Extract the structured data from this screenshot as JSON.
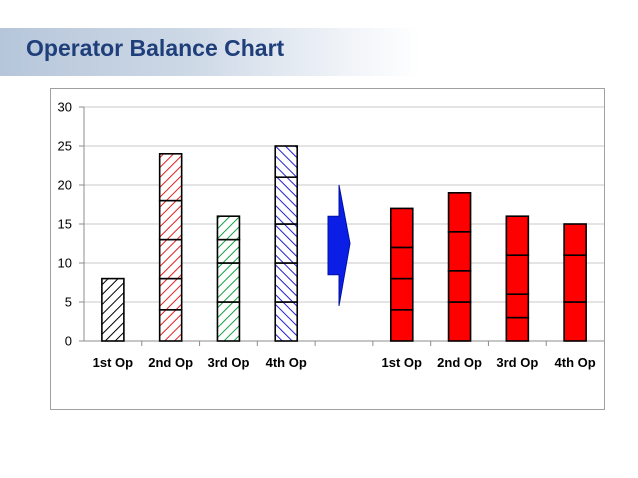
{
  "slide": {
    "title": "Operator Balance Chart"
  },
  "colors": {
    "title": "#1f3f7a",
    "before_ops": [
      "#000000",
      "#e02020",
      "#10a040",
      "#2020d0"
    ],
    "after": "#ff0000",
    "arrow": "#0a1ee6"
  },
  "chart_data": {
    "type": "bar",
    "stacked": true,
    "ylim": [
      0,
      30
    ],
    "yticks": [
      0,
      5,
      10,
      15,
      20,
      25,
      30
    ],
    "grid": true,
    "groups": [
      {
        "name": "",
        "style": "hatched",
        "categories": [
          "1st Op",
          "2nd Op",
          "3rd Op",
          "4th Op"
        ],
        "segments": [
          [
            8
          ],
          [
            4,
            4,
            5,
            5,
            6
          ],
          [
            5,
            5,
            3,
            3
          ],
          [
            5,
            5,
            5,
            6,
            4
          ]
        ]
      },
      {
        "name": "",
        "style": "solid",
        "categories": [
          "1st Op",
          "2nd Op",
          "3rd Op",
          "4th Op"
        ],
        "segments": [
          [
            4,
            4,
            4,
            5
          ],
          [
            5,
            4,
            5,
            5
          ],
          [
            3,
            3,
            5,
            5
          ],
          [
            5,
            6,
            4
          ]
        ]
      }
    ],
    "arrow": {
      "direction": "right",
      "between_groups": true
    }
  }
}
